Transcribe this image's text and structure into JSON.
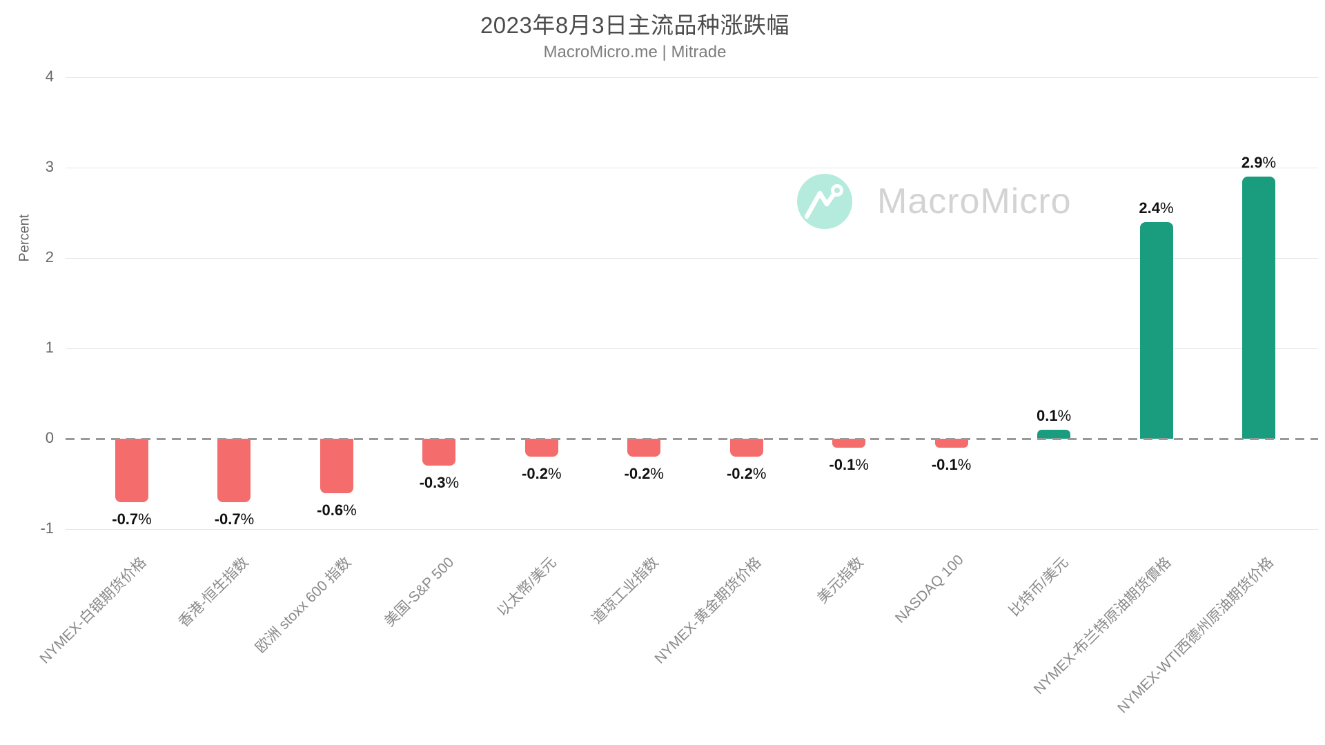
{
  "chart_data": {
    "type": "bar",
    "title": "2023年8月3日主流品种涨跌幅",
    "subtitle": "MacroMicro.me | Mitrade",
    "ylabel": "Percent",
    "ylim": [
      -1,
      4
    ],
    "yticks": [
      4,
      3,
      2,
      1,
      0,
      -1
    ],
    "grid": true,
    "zero_line_style": "dashed",
    "legend_position": "none",
    "categories": [
      "NYMEX-白银期货价格",
      "香港-恒生指数",
      "欧洲 stoxx 600 指数",
      "美国-S&P 500",
      "以太幣/美元",
      "道琼工业指数",
      "NYMEX-黄金期货价格",
      "美元指数",
      "NASDAQ 100",
      "比特币/美元",
      "NYMEX-布兰特原油期货價格",
      "NYMEX-WTI西德州原油期货价格"
    ],
    "values": [
      -0.7,
      -0.7,
      -0.6,
      -0.3,
      -0.2,
      -0.2,
      -0.2,
      -0.1,
      -0.1,
      0.1,
      2.4,
      2.9
    ],
    "value_labels": [
      "-0.7%",
      "-0.7%",
      "-0.6%",
      "-0.3%",
      "-0.2%",
      "-0.2%",
      "-0.2%",
      "-0.1%",
      "-0.1%",
      "0.1%",
      "2.4%",
      "2.9%"
    ],
    "colors": {
      "positive": "#1A9C7E",
      "negative": "#F56C6C",
      "zero_line": "#999999",
      "gridline": "#E5E5E5"
    }
  },
  "watermark": {
    "text": "MacroMicro",
    "icon": "macromicro-logo-icon",
    "icon_bg": "#B5EBDC",
    "text_color": "#D3D3D3"
  }
}
